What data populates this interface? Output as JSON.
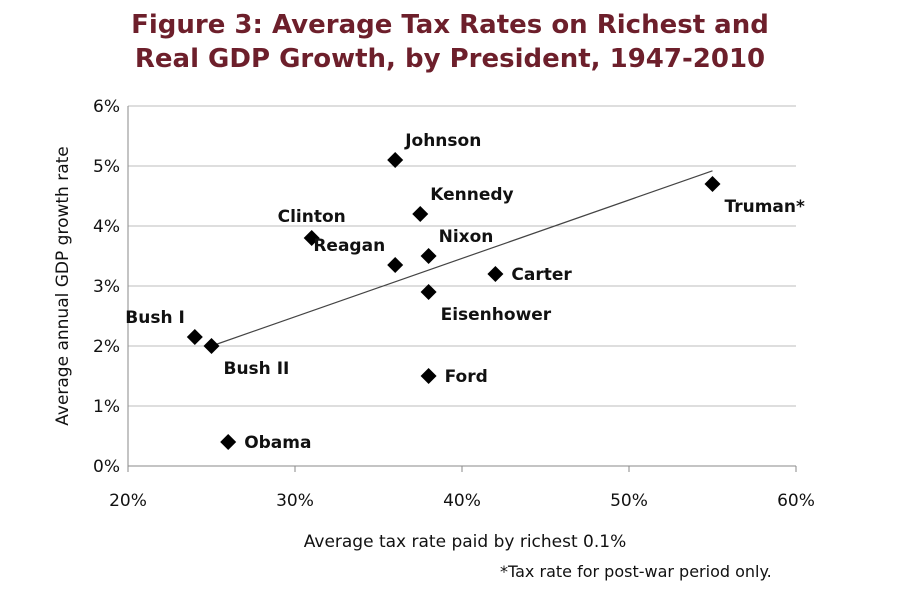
{
  "title_lines": [
    "Figure 3: Average Tax Rates on Richest and",
    "Real GDP Growth, by President, 1947-2010"
  ],
  "footnote": "*Tax rate for post-war period only.",
  "colors": {
    "title": "#6d1f2b",
    "marker": "#000000",
    "grid": "#bdbdbd",
    "trend": "#444444"
  },
  "chart_data": {
    "type": "scatter",
    "title": "Figure 3: Average Tax Rates on Richest and Real GDP Growth, by President, 1947-2010",
    "xlabel": "Average tax rate paid by richest 0.1%",
    "ylabel": "Average annual GDP growth rate",
    "xlim": [
      20,
      60
    ],
    "ylim": [
      0,
      6
    ],
    "x_ticks": [
      "20%",
      "30%",
      "40%",
      "50%",
      "60%"
    ],
    "y_ticks": [
      "0%",
      "1%",
      "2%",
      "3%",
      "4%",
      "5%",
      "6%"
    ],
    "grid": "horizontal",
    "points": [
      {
        "label": "Truman*",
        "x": 55,
        "y": 4.7,
        "anchor": "below-right"
      },
      {
        "label": "Johnson",
        "x": 36,
        "y": 5.1,
        "anchor": "above-right"
      },
      {
        "label": "Kennedy",
        "x": 37.5,
        "y": 4.2,
        "anchor": "above-right"
      },
      {
        "label": "Clinton",
        "x": 31,
        "y": 3.8,
        "anchor": "above"
      },
      {
        "label": "Reagan",
        "x": 36,
        "y": 3.35,
        "anchor": "above-left"
      },
      {
        "label": "Nixon",
        "x": 38,
        "y": 3.5,
        "anchor": "above-right"
      },
      {
        "label": "Carter",
        "x": 42,
        "y": 3.2,
        "anchor": "right"
      },
      {
        "label": "Eisenhower",
        "x": 38,
        "y": 2.9,
        "anchor": "below-right"
      },
      {
        "label": "Bush I",
        "x": 24,
        "y": 2.15,
        "anchor": "above-left"
      },
      {
        "label": "Bush II",
        "x": 25,
        "y": 2.0,
        "anchor": "below-right"
      },
      {
        "label": "Ford",
        "x": 38,
        "y": 1.5,
        "anchor": "right"
      },
      {
        "label": "Obama",
        "x": 26,
        "y": 0.4,
        "anchor": "right"
      }
    ],
    "trendline": {
      "x": [
        25,
        55
      ],
      "y": [
        2.0,
        4.92
      ]
    }
  }
}
